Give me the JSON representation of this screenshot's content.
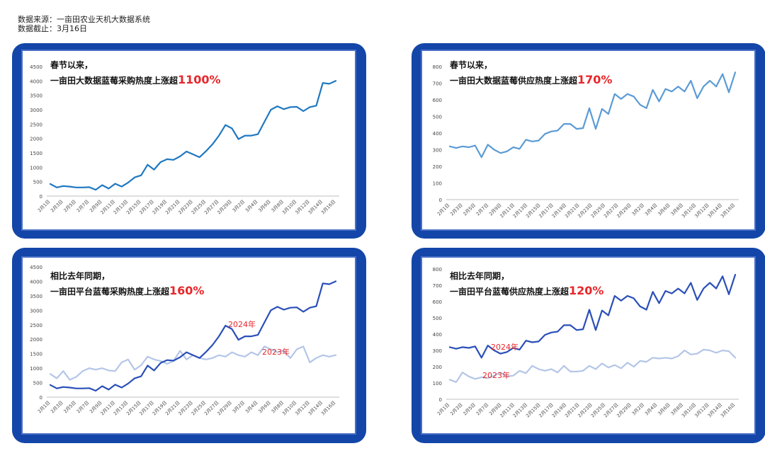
{
  "source": {
    "line1": "数据来源：一亩田农业天机大数据系统",
    "line2": "数据截止：3月16日"
  },
  "chart_data": [
    {
      "type": "line",
      "title_line1": "春节以来，",
      "title_prefix": "一亩田大数据蓝莓采购热度上涨超",
      "title_highlight": "1100%",
      "ylim": [
        0,
        4500
      ],
      "yticks": [
        0,
        500,
        1000,
        1500,
        2000,
        2500,
        3000,
        3500,
        4000,
        4500
      ],
      "xticks": [
        "2月1日",
        "2月3日",
        "2月5日",
        "2月7日",
        "2月9日",
        "2月11日",
        "2月13日",
        "2月15日",
        "2月17日",
        "2月19日",
        "2月21日",
        "2月23日",
        "2月25日",
        "2月27日",
        "2月29日",
        "3月2日",
        "3月4日",
        "3月6日",
        "3月8日",
        "3月10日",
        "3月12日",
        "3月14日",
        "3月16日"
      ],
      "series": [
        {
          "color": "#1f78c1",
          "values": [
            420,
            300,
            350,
            330,
            300,
            300,
            310,
            220,
            380,
            260,
            430,
            330,
            470,
            650,
            720,
            1090,
            920,
            1180,
            1280,
            1260,
            1380,
            1550,
            1450,
            1350,
            1560,
            1800,
            2100,
            2470,
            2350,
            1980,
            2100,
            2100,
            2150,
            2580,
            3000,
            3120,
            3020,
            3090,
            3100,
            2950,
            3090,
            3140,
            3930,
            3900,
            4000
          ]
        }
      ]
    },
    {
      "type": "line",
      "title_line1": "春节以来，",
      "title_prefix": "一亩田大数据蓝莓供应热度上涨超",
      "title_highlight": "170%",
      "ylim": [
        0,
        800
      ],
      "yticks": [
        0,
        100,
        200,
        300,
        400,
        500,
        600,
        700,
        800
      ],
      "xticks": [
        "2月1日",
        "2月3日",
        "2月5日",
        "2月7日",
        "2月9日",
        "2月11日",
        "2月13日",
        "2月15日",
        "2月17日",
        "2月19日",
        "2月21日",
        "2月23日",
        "2月25日",
        "2月27日",
        "2月29日",
        "3月2日",
        "3月4日",
        "3月6日",
        "3月8日",
        "3月10日",
        "3月12日",
        "3月14日",
        "3月16日"
      ],
      "series": [
        {
          "color": "#5b9bd5",
          "values": [
            320,
            310,
            320,
            315,
            325,
            255,
            330,
            300,
            280,
            290,
            315,
            305,
            360,
            350,
            355,
            395,
            410,
            415,
            455,
            455,
            425,
            430,
            550,
            425,
            545,
            515,
            635,
            605,
            635,
            620,
            570,
            550,
            660,
            590,
            665,
            650,
            680,
            650,
            715,
            610,
            680,
            715,
            680,
            755,
            645,
            765
          ]
        }
      ]
    },
    {
      "type": "line",
      "title_line1": "相比去年同期，",
      "title_prefix": "一亩田平台蓝莓采购热度上涨超",
      "title_highlight": "160%",
      "ylim": [
        0,
        4500
      ],
      "yticks": [
        0,
        500,
        1000,
        1500,
        2000,
        2500,
        3000,
        3500,
        4000,
        4500
      ],
      "xticks": [
        "2月1日",
        "2月3日",
        "2月5日",
        "2月7日",
        "2月9日",
        "2月11日",
        "2月13日",
        "2月15日",
        "2月17日",
        "2月19日",
        "2月21日",
        "2月23日",
        "2月25日",
        "2月27日",
        "2月29日",
        "3月2日",
        "3月4日",
        "3月6日",
        "3月8日",
        "3月10日",
        "3月12日",
        "3月14日",
        "3月16日"
      ],
      "series": [
        {
          "name": "2024年",
          "color": "#2a4fb8",
          "values": [
            420,
            300,
            350,
            330,
            300,
            300,
            310,
            220,
            380,
            260,
            430,
            330,
            470,
            650,
            720,
            1090,
            920,
            1180,
            1280,
            1260,
            1380,
            1550,
            1450,
            1350,
            1560,
            1800,
            2100,
            2470,
            2350,
            1980,
            2100,
            2100,
            2150,
            2580,
            3000,
            3120,
            3020,
            3090,
            3100,
            2950,
            3090,
            3140,
            3930,
            3900,
            4000
          ]
        },
        {
          "name": "2023年",
          "color": "#b4c6e7",
          "values": [
            800,
            650,
            900,
            600,
            700,
            900,
            1000,
            950,
            1000,
            920,
            900,
            1200,
            1300,
            950,
            1100,
            1400,
            1300,
            1250,
            1150,
            1250,
            1600,
            1300,
            1450,
            1350,
            1300,
            1350,
            1450,
            1400,
            1550,
            1450,
            1400,
            1550,
            1450,
            1750,
            1650,
            1550,
            1600,
            1350,
            1650,
            1750,
            1200,
            1350,
            1450,
            1400,
            1450
          ]
        }
      ]
    },
    {
      "type": "line",
      "title_line1": "相比去年同期，",
      "title_prefix": "一亩田平台蓝莓供应热度上涨超",
      "title_highlight": "120%",
      "ylim": [
        0,
        800
      ],
      "yticks": [
        0,
        100,
        200,
        300,
        400,
        500,
        600,
        700,
        800
      ],
      "xticks": [
        "2月1日",
        "2月3日",
        "2月5日",
        "2月7日",
        "2月9日",
        "2月11日",
        "2月13日",
        "2月15日",
        "2月17日",
        "2月19日",
        "2月21日",
        "2月23日",
        "2月25日",
        "2月27日",
        "2月29日",
        "3月2日",
        "3月4日",
        "3月6日",
        "3月8日",
        "3月10日",
        "3月12日",
        "3月14日",
        "3月16日"
      ],
      "series": [
        {
          "name": "2024年",
          "color": "#2a4fb8",
          "values": [
            320,
            310,
            320,
            315,
            325,
            255,
            330,
            300,
            280,
            290,
            315,
            305,
            360,
            350,
            355,
            395,
            410,
            415,
            455,
            455,
            425,
            430,
            550,
            425,
            545,
            515,
            635,
            605,
            635,
            620,
            570,
            550,
            660,
            590,
            665,
            650,
            680,
            650,
            715,
            610,
            680,
            715,
            680,
            755,
            645,
            765
          ]
        },
        {
          "name": "2023年",
          "color": "#b4c6e7",
          "values": [
            120,
            105,
            165,
            140,
            125,
            135,
            130,
            145,
            165,
            140,
            145,
            175,
            160,
            205,
            185,
            175,
            185,
            165,
            205,
            170,
            170,
            175,
            205,
            185,
            220,
            195,
            210,
            190,
            225,
            200,
            235,
            230,
            255,
            250,
            255,
            250,
            265,
            300,
            275,
            280,
            305,
            300,
            285,
            300,
            295,
            255
          ]
        }
      ]
    }
  ]
}
